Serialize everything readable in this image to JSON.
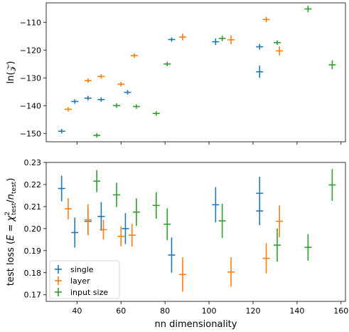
{
  "chart_data": [
    {
      "type": "scatter",
      "title": "",
      "xlabel": "",
      "ylabel": "ln(𝒵)",
      "xlim": [
        26,
        162
      ],
      "ylim": [
        -153,
        -103
      ],
      "xticks": [
        40,
        60,
        80,
        100,
        120,
        140,
        160
      ],
      "xtick_labels": [
        "",
        "",
        "",
        "",
        "",
        "",
        ""
      ],
      "yticks": [
        -150,
        -140,
        -130,
        -120,
        -110
      ],
      "ytick_labels": [
        "−150",
        "−140",
        "−130",
        "−120",
        "−110"
      ],
      "grid": false,
      "error_bars": true,
      "series": [
        {
          "name": "single",
          "color": "#1f77b4",
          "points": [
            {
              "x": 33,
              "y": -149.2,
              "yerr": 0.8
            },
            {
              "x": 39,
              "y": -138.5,
              "yerr": 0.8
            },
            {
              "x": 45,
              "y": -137.3,
              "yerr": 0.8
            },
            {
              "x": 51,
              "y": -137.8,
              "yerr": 0.8
            },
            {
              "x": 63,
              "y": -135.2,
              "yerr": 0.8
            },
            {
              "x": 83,
              "y": -116.2,
              "yerr": 0.8
            },
            {
              "x": 103,
              "y": -117.0,
              "yerr": 1.2
            },
            {
              "x": 123,
              "y": -118.8,
              "yerr": 1.0
            },
            {
              "x": 123,
              "y": -127.8,
              "yerr": 2.2
            }
          ]
        },
        {
          "name": "layer",
          "color": "#ff7f0e",
          "points": [
            {
              "x": 36,
              "y": -141.3,
              "yerr": 0.8
            },
            {
              "x": 45,
              "y": -131.0,
              "yerr": 0.8
            },
            {
              "x": 51,
              "y": -129.5,
              "yerr": 0.8
            },
            {
              "x": 60,
              "y": -132.3,
              "yerr": 0.8
            },
            {
              "x": 66,
              "y": -122.0,
              "yerr": 0.8
            },
            {
              "x": 88,
              "y": -115.3,
              "yerr": 1.2
            },
            {
              "x": 110,
              "y": -116.3,
              "yerr": 1.6
            },
            {
              "x": 126,
              "y": -109.0,
              "yerr": 1.0
            },
            {
              "x": 132,
              "y": -120.3,
              "yerr": 1.6
            }
          ]
        },
        {
          "name": "input size",
          "color": "#2ca02c",
          "points": [
            {
              "x": 49,
              "y": -150.7,
              "yerr": 0.8
            },
            {
              "x": 58,
              "y": -140.0,
              "yerr": 0.8
            },
            {
              "x": 67,
              "y": -140.3,
              "yerr": 0.8
            },
            {
              "x": 76,
              "y": -142.8,
              "yerr": 0.8
            },
            {
              "x": 81,
              "y": -125.0,
              "yerr": 0.8
            },
            {
              "x": 106,
              "y": -115.8,
              "yerr": 1.0
            },
            {
              "x": 131,
              "y": -117.3,
              "yerr": 0.8
            },
            {
              "x": 145,
              "y": -105.2,
              "yerr": 1.2
            },
            {
              "x": 156,
              "y": -125.3,
              "yerr": 1.6
            }
          ]
        }
      ]
    },
    {
      "type": "scatter",
      "title": "",
      "xlabel": "nn dimensionality",
      "ylabel": "test loss (E = χ²test / ntest)",
      "ylabel_parts": {
        "pre": "test loss (",
        "e": "E",
        "eq": " = ",
        "chi": "χ",
        "sup": "2",
        "sub1": "test",
        "slash": "/",
        "n": "n",
        "sub2": "test",
        "post": ")"
      },
      "xlim": [
        26,
        162
      ],
      "ylim": [
        0.167,
        0.23
      ],
      "xticks": [
        40,
        60,
        80,
        100,
        120,
        140,
        160
      ],
      "xtick_labels": [
        "40",
        "60",
        "80",
        "100",
        "120",
        "140",
        "160"
      ],
      "yticks": [
        0.17,
        0.18,
        0.19,
        0.2,
        0.21,
        0.22,
        0.23
      ],
      "ytick_labels": [
        "0.17",
        "0.18",
        "0.19",
        "0.20",
        "0.21",
        "0.22",
        "0.23"
      ],
      "grid": false,
      "error_bars": true,
      "legend": {
        "placement": "lower-left"
      },
      "series": [
        {
          "name": "single",
          "color": "#1f77b4",
          "points": [
            {
              "x": 33,
              "y": 0.2182,
              "yerr": 0.0058
            },
            {
              "x": 39,
              "y": 0.1982,
              "yerr": 0.0068
            },
            {
              "x": 45,
              "y": 0.2033,
              "yerr": 0.006
            },
            {
              "x": 51,
              "y": 0.2055,
              "yerr": 0.0065
            },
            {
              "x": 62,
              "y": 0.2,
              "yerr": 0.007
            },
            {
              "x": 83,
              "y": 0.188,
              "yerr": 0.008
            },
            {
              "x": 103,
              "y": 0.2108,
              "yerr": 0.008
            },
            {
              "x": 123,
              "y": 0.216,
              "yerr": 0.0075
            },
            {
              "x": 123,
              "y": 0.208,
              "yerr": 0.0065
            }
          ]
        },
        {
          "name": "layer",
          "color": "#ff7f0e",
          "points": [
            {
              "x": 36,
              "y": 0.209,
              "yerr": 0.0048
            },
            {
              "x": 45,
              "y": 0.204,
              "yerr": 0.007
            },
            {
              "x": 52,
              "y": 0.1995,
              "yerr": 0.0045
            },
            {
              "x": 60,
              "y": 0.1965,
              "yerr": 0.0045
            },
            {
              "x": 65,
              "y": 0.197,
              "yerr": 0.0052
            },
            {
              "x": 88,
              "y": 0.1792,
              "yerr": 0.0078
            },
            {
              "x": 110,
              "y": 0.1803,
              "yerr": 0.0067
            },
            {
              "x": 126,
              "y": 0.1865,
              "yerr": 0.0068
            },
            {
              "x": 132,
              "y": 0.2033,
              "yerr": 0.0072
            }
          ]
        },
        {
          "name": "input size",
          "color": "#2ca02c",
          "points": [
            {
              "x": 49,
              "y": 0.2215,
              "yerr": 0.005
            },
            {
              "x": 58,
              "y": 0.2153,
              "yerr": 0.0055
            },
            {
              "x": 67,
              "y": 0.2075,
              "yerr": 0.0062
            },
            {
              "x": 76,
              "y": 0.2105,
              "yerr": 0.006
            },
            {
              "x": 81,
              "y": 0.202,
              "yerr": 0.0072
            },
            {
              "x": 106,
              "y": 0.2035,
              "yerr": 0.0078
            },
            {
              "x": 131,
              "y": 0.1925,
              "yerr": 0.0075
            },
            {
              "x": 145,
              "y": 0.1915,
              "yerr": 0.006
            },
            {
              "x": 156,
              "y": 0.2198,
              "yerr": 0.0072
            }
          ]
        }
      ]
    }
  ]
}
